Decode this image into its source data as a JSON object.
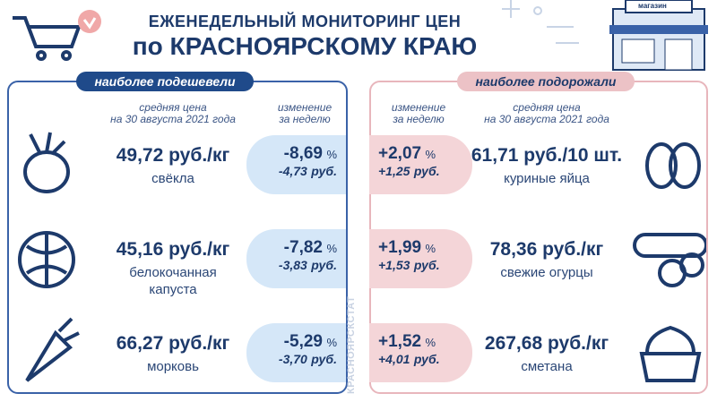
{
  "header": {
    "title_line1": "ЕЖЕНЕДЕЛЬНЫЙ МОНИТОРИНГ ЦЕН",
    "title_line2": "по КРАСНОЯРСКОМУ КРАЮ",
    "shop_sign": "магазин"
  },
  "side_label": "КРАСНОЯРСКСТАТ",
  "left": {
    "heading": "наиболее подешевели",
    "col_price": [
      "средняя цена",
      "на 30 августа 2021 года"
    ],
    "col_change": [
      "изменение",
      "за неделю"
    ],
    "items": [
      {
        "price": "49,72",
        "unit": "руб./кг",
        "name": [
          "свёкла"
        ],
        "pct": "-8,69",
        "pct_unit": "%",
        "abs": "-4,73",
        "abs_unit": "руб."
      },
      {
        "price": "45,16",
        "unit": "руб./кг",
        "name": [
          "белокочанная",
          "капуста"
        ],
        "pct": "-7,82",
        "pct_unit": "%",
        "abs": "-3,83",
        "abs_unit": "руб."
      },
      {
        "price": "66,27",
        "unit": "руб./кг",
        "name": [
          "морковь"
        ],
        "pct": "-5,29",
        "pct_unit": "%",
        "abs": "-3,70",
        "abs_unit": "руб."
      }
    ]
  },
  "right": {
    "heading": "наиболее подорожали",
    "col_price": [
      "средняя цена",
      "на 30 августа 2021 года"
    ],
    "col_change": [
      "изменение",
      "за неделю"
    ],
    "items": [
      {
        "price": "61,71",
        "unit": "руб./10 шт.",
        "name": [
          "куриные яйца"
        ],
        "pct": "+2,07",
        "pct_unit": "%",
        "abs": "+1,25",
        "abs_unit": "руб."
      },
      {
        "price": "78,36",
        "unit": "руб./кг",
        "name": [
          "свежие огурцы"
        ],
        "pct": "+1,99",
        "pct_unit": "%",
        "abs": "+1,53",
        "abs_unit": "руб."
      },
      {
        "price": "267,68",
        "unit": "руб./кг",
        "name": [
          "сметана"
        ],
        "pct": "+1,52",
        "pct_unit": "%",
        "abs": "+4,01",
        "abs_unit": "руб."
      }
    ]
  }
}
